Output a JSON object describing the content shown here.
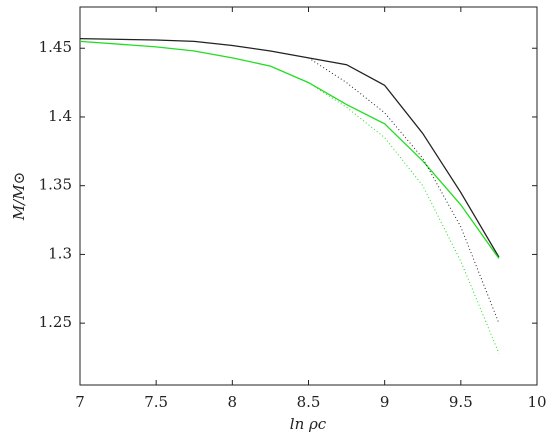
{
  "chart_data": {
    "type": "line",
    "xlabel": "ln ρc",
    "ylabel": "M/M⊙",
    "x": [
      7,
      7.5,
      7.75,
      8,
      8.25,
      8.5,
      8.75,
      9,
      9.25,
      9.5,
      9.75
    ],
    "series": [
      {
        "color": "#222222",
        "style": "solid",
        "values": [
          1.457,
          1.456,
          1.455,
          1.452,
          1.448,
          1.443,
          1.438,
          1.423,
          1.388,
          1.345,
          1.298
        ]
      },
      {
        "color": "#22dd22",
        "style": "solid",
        "values": [
          1.455,
          1.451,
          1.448,
          1.443,
          1.437,
          1.425,
          1.409,
          1.395,
          1.368,
          1.336,
          1.297
        ]
      },
      {
        "color": "#222222",
        "style": "dotted",
        "values": [
          null,
          null,
          null,
          null,
          null,
          1.443,
          1.425,
          1.403,
          1.37,
          1.32,
          1.25
        ]
      },
      {
        "color": "#22dd22",
        "style": "dotted",
        "values": [
          null,
          null,
          null,
          null,
          null,
          1.425,
          1.407,
          1.385,
          1.35,
          1.295,
          1.228
        ]
      }
    ],
    "xlim": [
      7,
      10
    ],
    "ylim": [
      1.205,
      1.48
    ],
    "xticks": [
      7,
      7.5,
      8,
      8.5,
      9,
      9.5,
      10
    ],
    "yticks": [
      1.25,
      1.3,
      1.35,
      1.4,
      1.45
    ]
  }
}
